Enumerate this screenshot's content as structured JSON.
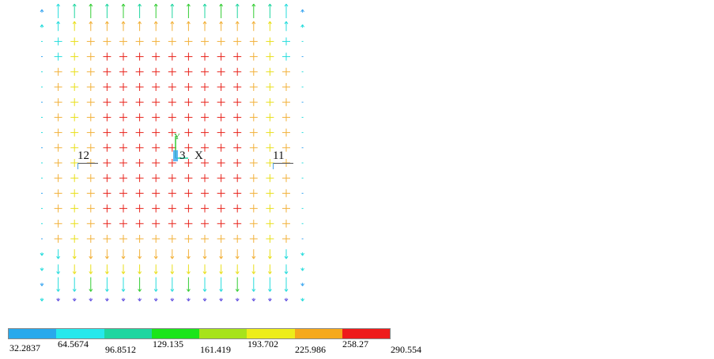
{
  "field": {
    "node_labels": [
      {
        "id": "n12",
        "text": "12"
      },
      {
        "id": "n3",
        "text": "3"
      },
      {
        "id": "n11",
        "text": "11"
      }
    ],
    "axis_labels": {
      "x": "X",
      "y": "Y"
    },
    "colors": {
      "red": "#e8241c",
      "orange": "#f2b13a",
      "yellow": "#e9df1a",
      "lime": "#a7d51c",
      "green": "#33cc33",
      "teal": "#1fd6a0",
      "cyan": "#27dcdc",
      "blue": "#3aa6f0",
      "violet": "#6a5ae0"
    }
  },
  "legend": {
    "ticks": [
      "32.2837",
      "64.5674",
      "96.8512",
      "129.135",
      "161.419",
      "193.702",
      "225.986",
      "258.27",
      "290.554"
    ],
    "colors": [
      "#28a9ec",
      "#26e8ec",
      "#1fd6a0",
      "#1be51b",
      "#a7e31b",
      "#eded1a",
      "#f5a91c",
      "#ee1b1b"
    ]
  }
}
